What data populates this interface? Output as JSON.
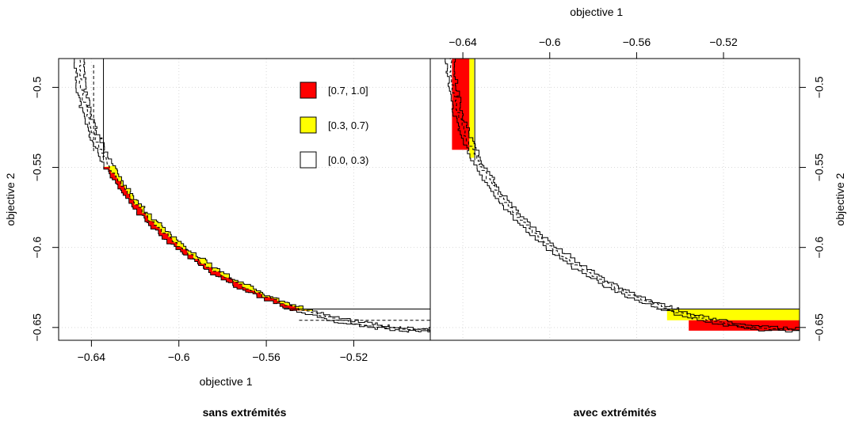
{
  "chart_data": {
    "type": "area",
    "description_kind": "empirical attainment function (EAF) difference plot, two panels",
    "shared": {
      "x_label": "objective 1",
      "y_label": "objective 2",
      "xlim": [
        -0.655,
        -0.485
      ],
      "ylim": [
        -0.658,
        -0.482
      ],
      "x_ticks": [
        -0.64,
        -0.6,
        -0.56,
        -0.52
      ],
      "x_tick_labels": [
        "−0.64",
        "−0.6",
        "−0.56",
        "−0.52"
      ],
      "y_ticks": [
        -0.5,
        -0.55,
        -0.6,
        -0.65
      ],
      "y_tick_labels": [
        "−0.5",
        "−0.55",
        "−0.6",
        "−0.65"
      ],
      "grid": true
    },
    "legend": [
      {
        "label": "[0.7, 1.0]",
        "color": "#ff0000"
      },
      {
        "label": "[0.3, 0.7)",
        "color": "#ffff00"
      },
      {
        "label": "[0.0, 0.3)",
        "color": "#ffffff"
      }
    ],
    "panels": [
      {
        "title": "sans extrémités",
        "x_axis_side": "bottom",
        "y_axis_side": "left",
        "boundary_solid_vertical_x": -0.6345,
        "boundary_dashed_vertical_x": -0.639,
        "boundary_solid_horizontal_y": -0.6385,
        "boundary_dashed_horizontal_y": -0.6455,
        "knee_point": [
          -0.6345,
          -0.5455
        ],
        "front_start": [
          -0.6475,
          -0.482
        ],
        "front_end": [
          -0.485,
          -0.6525
        ]
      },
      {
        "title": "avec extrémités",
        "x_axis_side": "top",
        "y_axis_side": "right",
        "boundary_solid_vertical_x": -0.6345,
        "boundary_solid_horizontal_y": -0.6385,
        "red_region_top_left": {
          "x": [
            -0.645,
            -0.637
          ],
          "y": [
            -0.482,
            -0.539
          ]
        },
        "yellow_region_top_left": {
          "x": [
            -0.637,
            -0.6348
          ],
          "y": [
            -0.482,
            -0.544
          ]
        },
        "red_region_bottom_right": {
          "x": [
            -0.536,
            -0.485
          ],
          "y": [
            -0.6455,
            -0.652
          ]
        },
        "yellow_region_bottom_right": {
          "x": [
            -0.546,
            -0.485
          ],
          "y": [
            -0.6385,
            -0.6455
          ]
        },
        "front_start": [
          -0.6475,
          -0.482
        ],
        "front_end": [
          -0.485,
          -0.6525
        ]
      }
    ]
  }
}
